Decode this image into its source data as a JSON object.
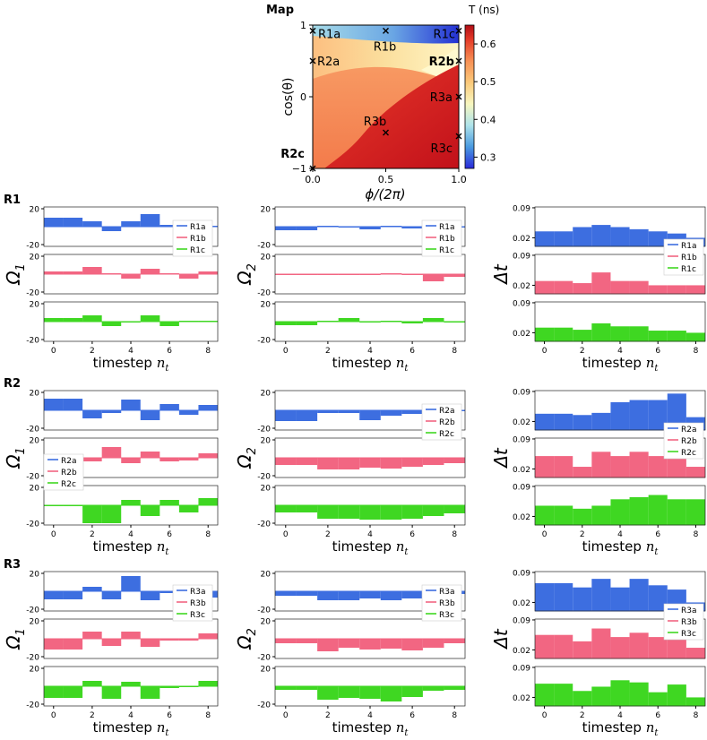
{
  "chart_data": {
    "type": "heatmap+step-bar-grid",
    "map": {
      "title": "Map",
      "xlabel": "ϕ/(2π)",
      "ylabel": "cos(θ)",
      "x_ticks": [
        "0.0",
        "0.5",
        "1.0"
      ],
      "y_ticks": [
        "−1",
        "0",
        "1"
      ],
      "colorbar": {
        "label": "T (ns)",
        "ticks": [
          "0.3",
          "0.4",
          "0.5",
          "0.6"
        ],
        "range": [
          0.27,
          0.65
        ]
      },
      "points": [
        {
          "label": "R1a",
          "phi": 0.0,
          "cos": 0.92
        },
        {
          "label": "R1b",
          "phi": 0.5,
          "cos": 0.92
        },
        {
          "label": "R1c",
          "phi": 1.0,
          "cos": 0.92
        },
        {
          "label": "R2a",
          "phi": 0.0,
          "cos": 0.5
        },
        {
          "label": "R2b",
          "phi": 1.0,
          "cos": 0.5
        },
        {
          "label": "R2c",
          "phi": 0.0,
          "cos": -1.0
        },
        {
          "label": "R3a",
          "phi": 1.0,
          "cos": 0.0
        },
        {
          "label": "R3b",
          "phi": 0.5,
          "cos": -0.5
        },
        {
          "label": "R3c",
          "phi": 1.0,
          "cos": -0.55
        }
      ]
    },
    "x_axis": {
      "label": "timestep n",
      "subscript": "t",
      "ticks": [
        0,
        2,
        4,
        6,
        8
      ],
      "range": [
        -0.5,
        8.5
      ]
    },
    "columns": [
      {
        "ylabel": "Ω",
        "subscript": "1",
        "ticks": [
          "20",
          "-20"
        ],
        "range": [
          -22,
          22
        ],
        "baseline": 0
      },
      {
        "ylabel": "Ω",
        "subscript": "2",
        "ticks": [
          "20",
          "-20"
        ],
        "range": [
          -22,
          22
        ],
        "baseline": 0
      },
      {
        "ylabel": "Δt",
        "subscript": "",
        "ticks": [
          "0.09",
          "0.02"
        ],
        "range": [
          0.0,
          0.092
        ],
        "baseline": 0.0
      }
    ],
    "colors": {
      "a": "#3d6ee0",
      "b": "#f26682",
      "c": "#3fd722"
    },
    "groups": [
      {
        "name": "R1",
        "series": [
          "R1a",
          "R1b",
          "R1c"
        ],
        "omega1": [
          [
            10,
            10,
            6,
            -5,
            6,
            14,
            2,
            2,
            1
          ],
          [
            3,
            3,
            8,
            1,
            -5,
            6,
            1,
            -5,
            3
          ],
          [
            4,
            4,
            7,
            -5,
            0,
            7,
            -5,
            1,
            1
          ]
        ],
        "omega2": [
          [
            -4,
            -4,
            1,
            0,
            -3,
            1,
            -2,
            4,
            0
          ],
          [
            0,
            0,
            -1,
            -1,
            -1,
            1,
            -1,
            -8,
            -3
          ],
          [
            -4,
            -4,
            1,
            4,
            -1,
            1,
            -2,
            4,
            0
          ]
        ],
        "dt": [
          [
            0.035,
            0.035,
            0.045,
            0.05,
            0.045,
            0.04,
            0.035,
            0.03,
            0.02
          ],
          [
            0.03,
            0.03,
            0.025,
            0.05,
            0.03,
            0.03,
            0.02,
            0.02,
            0.02
          ],
          [
            0.032,
            0.032,
            0.027,
            0.042,
            0.035,
            0.035,
            0.025,
            0.025,
            0.02
          ]
        ]
      },
      {
        "name": "R2",
        "series": [
          "R2a",
          "R2b",
          "R2c"
        ],
        "omega1": [
          [
            13,
            13,
            -9,
            -3,
            12,
            -11,
            7,
            -5,
            6
          ],
          [
            -4,
            -4,
            -4,
            12,
            -6,
            7,
            -4,
            -3,
            5
          ],
          [
            0,
            0,
            -20,
            -20,
            6,
            -12,
            6,
            -8,
            8
          ]
        ],
        "omega2": [
          [
            -12,
            -12,
            -3,
            -3,
            -11,
            -6,
            -4,
            -3,
            0
          ],
          [
            -8,
            -8,
            -13,
            -13,
            -11,
            -12,
            -10,
            -8,
            -6
          ],
          [
            -8,
            -8,
            -15,
            -15,
            -16,
            -16,
            -15,
            -12,
            -9
          ]
        ],
        "dt": [
          [
            0.038,
            0.038,
            0.035,
            0.04,
            0.065,
            0.07,
            0.07,
            0.085,
            0.03
          ],
          [
            0.05,
            0.05,
            0.025,
            0.06,
            0.05,
            0.06,
            0.05,
            0.05,
            0.025
          ],
          [
            0.045,
            0.045,
            0.038,
            0.045,
            0.06,
            0.065,
            0.07,
            0.06,
            0.06
          ]
        ]
      },
      {
        "name": "R3",
        "series": [
          "R3a",
          "R3b",
          "R3c"
        ],
        "omega1": [
          [
            -9,
            -9,
            5,
            -9,
            17,
            -10,
            -2,
            -4,
            -7
          ],
          [
            -12,
            -12,
            8,
            -8,
            8,
            -9,
            -2,
            -2,
            6
          ],
          [
            -13,
            -13,
            6,
            -14,
            5,
            -14,
            -2,
            0,
            6
          ]
        ],
        "omega2": [
          [
            -5,
            -5,
            -10,
            -10,
            -8,
            -10,
            -8,
            -4,
            -3
          ],
          [
            -5,
            -5,
            -14,
            -10,
            -12,
            -11,
            -13,
            -10,
            -5
          ],
          [
            -4,
            -4,
            -15,
            -13,
            -14,
            -17,
            -12,
            -5,
            -4
          ]
        ],
        "dt": [
          [
            0.065,
            0.065,
            0.055,
            0.075,
            0.055,
            0.075,
            0.06,
            0.05,
            0.02
          ],
          [
            0.055,
            0.055,
            0.04,
            0.07,
            0.05,
            0.06,
            0.05,
            0.055,
            0.025
          ],
          [
            0.052,
            0.052,
            0.035,
            0.045,
            0.06,
            0.055,
            0.032,
            0.05,
            0.02
          ]
        ]
      }
    ]
  }
}
